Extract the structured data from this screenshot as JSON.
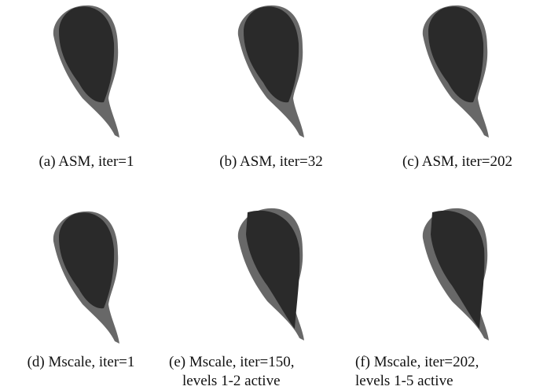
{
  "panels": [
    {
      "caption": [
        "(a) ASM, iter=1"
      ]
    },
    {
      "caption": [
        "(b) ASM, iter=32"
      ]
    },
    {
      "caption": [
        "(c) ASM, iter=202"
      ]
    },
    {
      "caption": [
        "(d) Mscale, iter=1"
      ]
    },
    {
      "caption": [
        "(e) Mscale, iter=150,",
        "levels 1-2 active"
      ]
    },
    {
      "caption": [
        "(f) Mscale, iter=202,",
        "levels 1-5 active"
      ]
    }
  ]
}
